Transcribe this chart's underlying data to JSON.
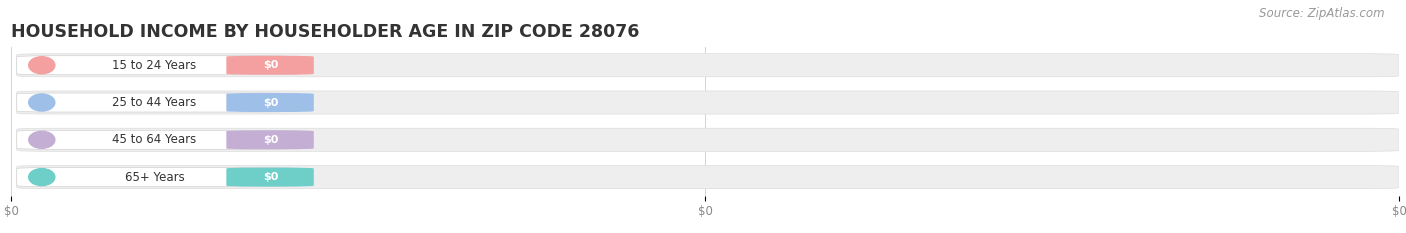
{
  "title": "HOUSEHOLD INCOME BY HOUSEHOLDER AGE IN ZIP CODE 28076",
  "source": "Source: ZipAtlas.com",
  "categories": [
    "15 to 24 Years",
    "25 to 44 Years",
    "45 to 64 Years",
    "65+ Years"
  ],
  "values": [
    0,
    0,
    0,
    0
  ],
  "bar_colors": [
    "#f4a0a0",
    "#9dbfe8",
    "#c4aed4",
    "#6ecec8"
  ],
  "bar_bg_color": "#efefef",
  "background_color": "#ffffff",
  "title_fontsize": 12.5,
  "source_fontsize": 8.5,
  "xtick_labels": [
    "$0",
    "$0",
    "$0"
  ],
  "xtick_positions": [
    0.0,
    0.5,
    1.0
  ]
}
